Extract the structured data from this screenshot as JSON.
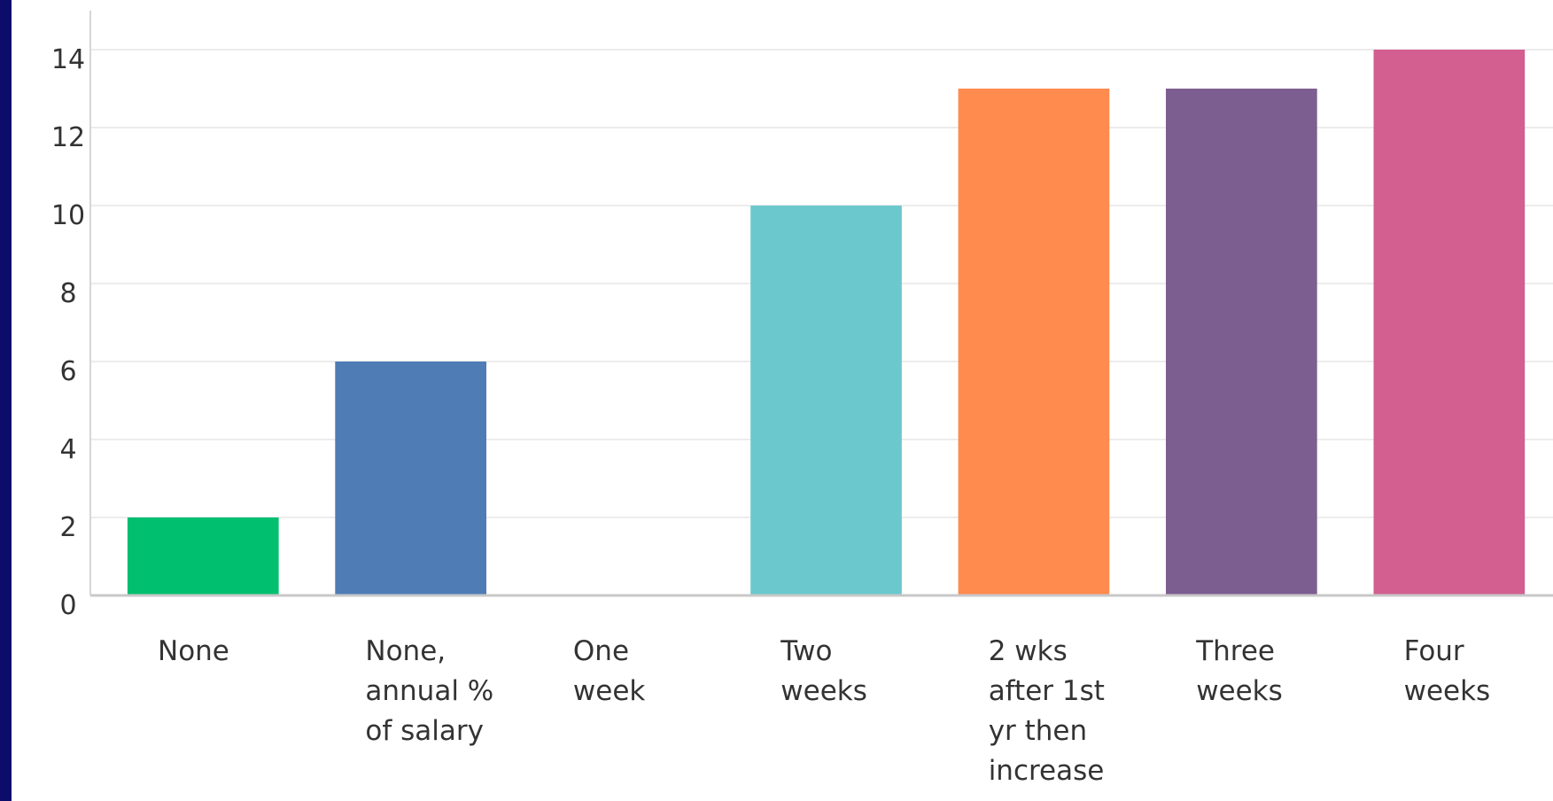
{
  "chart_data": {
    "type": "bar",
    "title": "",
    "xlabel": "",
    "ylabel": "",
    "categories": [
      "None",
      "None, annual % of salary",
      "One week",
      "Two weeks",
      "2 wks after 1st yr then increase",
      "Three weeks",
      "Four weeks"
    ],
    "category_lines": [
      [
        "None"
      ],
      [
        "None,",
        "annual %",
        "of salary"
      ],
      [
        "One",
        "week"
      ],
      [
        "Two",
        "weeks"
      ],
      [
        "2 wks",
        "after 1st",
        "yr then",
        "increase"
      ],
      [
        "Three",
        "weeks"
      ],
      [
        "Four",
        "weeks"
      ]
    ],
    "values": [
      2,
      6,
      0,
      10,
      13,
      13,
      14
    ],
    "colors": [
      "#00bf6f",
      "#507cb6",
      "#a0a0a0",
      "#6bc8cd",
      "#ff8b4f",
      "#7d5e90",
      "#d25f90"
    ],
    "yticks": [
      0,
      2,
      4,
      6,
      8,
      10,
      12,
      14
    ],
    "ylim": [
      0,
      14
    ],
    "grid": true,
    "legend": "none"
  }
}
